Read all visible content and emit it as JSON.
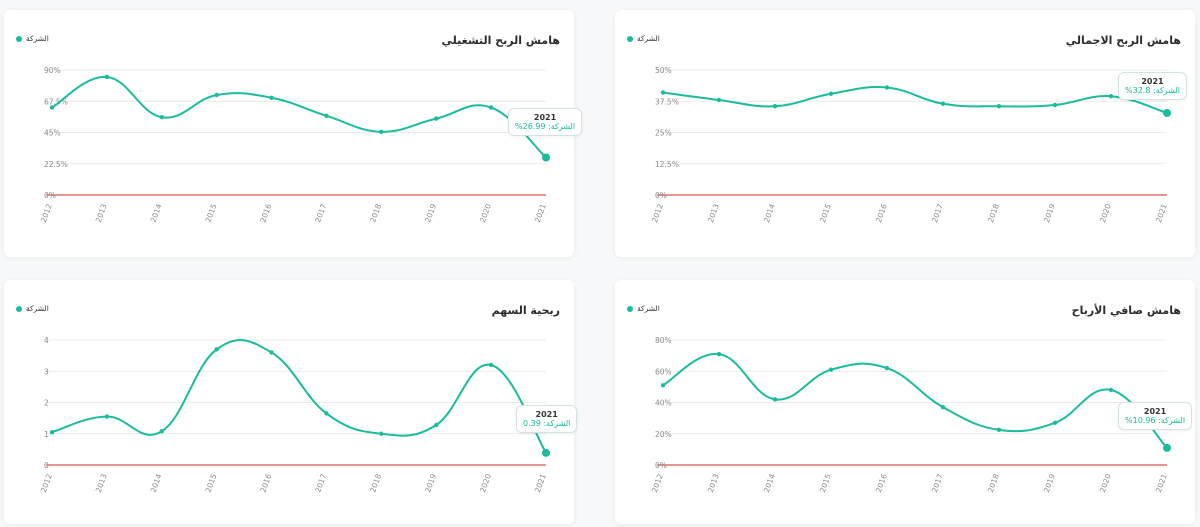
{
  "colors": {
    "series": "#1abc9c",
    "zero_line": "#d9534f",
    "grid": "#e4e4e4",
    "axis_text": "#8a8a8a"
  },
  "legend_label": "الشركة",
  "tooltip_prefix": "الشركة:",
  "charts": [
    {
      "id": "gross",
      "title": "هامش الربح الاجمالي",
      "y_ticks": [
        "0%",
        "12.5%",
        "25%",
        "37.5%",
        "50%"
      ],
      "tooltip": {
        "year": "2021",
        "value": "32.8%"
      },
      "chart_data": {
        "type": "line",
        "title": "هامش الربح الاجمالي",
        "xlabel": "",
        "ylabel": "",
        "x": [
          "2012",
          "2013",
          "2014",
          "2015",
          "2016",
          "2017",
          "2018",
          "2019",
          "2020",
          "2021"
        ],
        "series": [
          {
            "name": "الشركة",
            "values": [
              41,
              38,
              35.5,
              40.5,
              43,
              36.5,
              35.5,
              36,
              39.5,
              32.8
            ]
          }
        ],
        "ylim": [
          0,
          50
        ],
        "grid": true,
        "legend_position": "top-left"
      }
    },
    {
      "id": "operating",
      "title": "هامش الربح التشغيلي",
      "y_ticks": [
        "0%",
        "22.5%",
        "45%",
        "67.5%",
        "90%"
      ],
      "tooltip": {
        "year": "2021",
        "value": "26.99%"
      },
      "chart_data": {
        "type": "line",
        "title": "هامش الربح التشغيلي",
        "xlabel": "",
        "ylabel": "",
        "x": [
          "2012",
          "2013",
          "2014",
          "2015",
          "2016",
          "2017",
          "2018",
          "2019",
          "2020",
          "2021"
        ],
        "series": [
          {
            "name": "الشركة",
            "values": [
              63,
              85,
              56,
              72,
              70,
              57,
              45.5,
              55,
              63,
              26.99
            ]
          }
        ],
        "ylim": [
          0,
          90
        ],
        "grid": true,
        "legend_position": "top-left"
      }
    },
    {
      "id": "net",
      "title": "هامش صافي الأرباح",
      "y_ticks": [
        "0%",
        "20%",
        "40%",
        "60%",
        "80%"
      ],
      "tooltip": {
        "year": "2021",
        "value": "10.96%"
      },
      "chart_data": {
        "type": "line",
        "title": "هامش صافي الأرباح",
        "xlabel": "",
        "ylabel": "",
        "x": [
          "2012",
          "2013",
          "2014",
          "2015",
          "2016",
          "2017",
          "2018",
          "2019",
          "2020",
          "2021"
        ],
        "series": [
          {
            "name": "الشركة",
            "values": [
              51,
              71,
              42,
              61,
              62,
              37,
              22.5,
              27,
              48,
              10.96
            ]
          }
        ],
        "ylim": [
          0,
          80
        ],
        "grid": true,
        "legend_position": "top-left"
      }
    },
    {
      "id": "eps",
      "title": "ربحية السهم",
      "y_ticks": [
        "0",
        "1",
        "2",
        "3",
        "4"
      ],
      "tooltip": {
        "year": "2021",
        "value": "0.39"
      },
      "chart_data": {
        "type": "line",
        "title": "ربحية السهم",
        "xlabel": "",
        "ylabel": "",
        "x": [
          "2012",
          "2013",
          "2014",
          "2015",
          "2016",
          "2017",
          "2018",
          "2019",
          "2020",
          "2021"
        ],
        "series": [
          {
            "name": "الشركة",
            "values": [
              1.05,
              1.55,
              1.08,
              3.7,
              3.6,
              1.65,
              1.0,
              1.28,
              3.2,
              0.39
            ]
          }
        ],
        "ylim": [
          0,
          4
        ],
        "grid": true,
        "legend_position": "top-left"
      }
    }
  ]
}
